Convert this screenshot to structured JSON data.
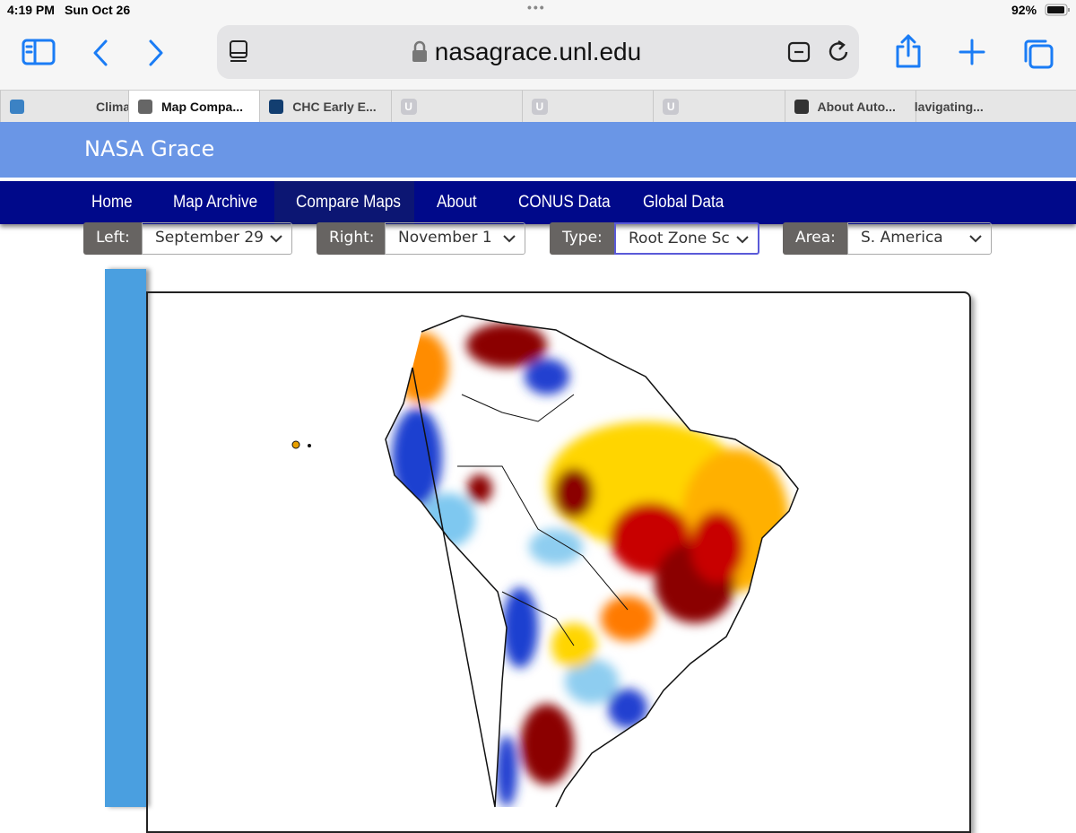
{
  "status_bar": {
    "time": "4:19 PM",
    "date": "Sun Oct 26",
    "battery": "92%"
  },
  "browser": {
    "url": "nasagrace.unl.edu",
    "tabs": [
      "Clima",
      "Map Compa...",
      "CHC Early E...",
      "U",
      "U",
      "U",
      "About Auto...",
      "lavigating..."
    ]
  },
  "site": {
    "title": "NASA Grace",
    "nav": [
      "Home",
      "Map Archive",
      "Compare Maps",
      "About",
      "CONUS Data",
      "Global Data"
    ],
    "controls": [
      {
        "label": "Left:",
        "value": "September 29"
      },
      {
        "label": "Right:",
        "value": "November 1"
      },
      {
        "label": "Type:",
        "value": "Root Zone Sc"
      },
      {
        "label": "Area:",
        "value": "S. America"
      }
    ]
  }
}
